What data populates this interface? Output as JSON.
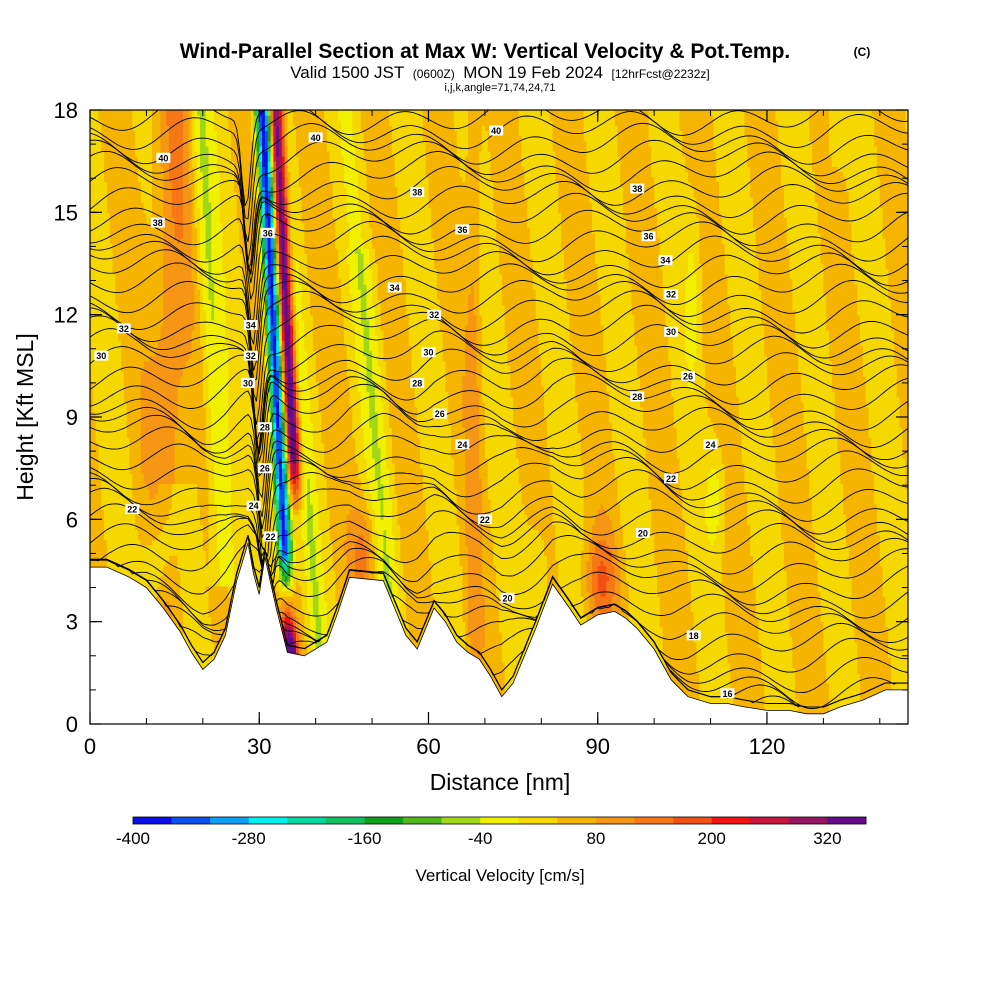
{
  "chart_data": {
    "type": "contour",
    "title": "Wind-Parallel Section at Max W: Vertical Velocity & Pot.Temp.",
    "title_mark": "(C)",
    "subtitle_prefix": "Valid 1500 JST",
    "subtitle_zulu": "(0600Z)",
    "subtitle_main": "MON 19 Feb 2024",
    "subtitle_fcst": "[12hrFcst@2232z]",
    "subtitle2": "i,j,k,angle=71,74,24,71",
    "xlabel": "Distance [nm]",
    "ylabel": "Height [Kft MSL]",
    "xlim": [
      0,
      145
    ],
    "ylim": [
      0,
      18
    ],
    "x_ticks": [
      0,
      30,
      60,
      90,
      120
    ],
    "y_ticks": [
      0,
      3,
      6,
      9,
      12,
      15,
      18
    ],
    "colorbar": {
      "label": "Vertical Velocity [cm/s]",
      "tick_labels": [
        "-400",
        "-280",
        "-160",
        "-40",
        "80",
        "200",
        "320"
      ],
      "min": -400,
      "max": 340,
      "step": 40,
      "colors": [
        "#0a10e6",
        "#0a50f0",
        "#0aa0f5",
        "#00f0f0",
        "#00d8a0",
        "#10c060",
        "#10a020",
        "#50b818",
        "#a0d818",
        "#f0f000",
        "#f5d800",
        "#f5b400",
        "#f59614",
        "#f57814",
        "#f55014",
        "#f01414",
        "#c8143c",
        "#961464",
        "#640a8c"
      ]
    },
    "theta_contour_labels": [
      "16",
      "18",
      "20",
      "22",
      "24",
      "26",
      "28",
      "30",
      "32",
      "34",
      "36",
      "38",
      "40"
    ],
    "terrain_kft": [
      [
        0,
        4.6
      ],
      [
        3,
        4.6
      ],
      [
        7,
        4.3
      ],
      [
        10,
        4.0
      ],
      [
        13,
        3.4
      ],
      [
        16,
        2.7
      ],
      [
        18,
        2.1
      ],
      [
        20,
        1.6
      ],
      [
        22,
        1.9
      ],
      [
        24,
        2.6
      ],
      [
        26,
        4.2
      ],
      [
        28,
        5.3
      ],
      [
        29,
        4.4
      ],
      [
        30,
        3.8
      ],
      [
        31,
        4.9
      ],
      [
        33,
        3.4
      ],
      [
        35,
        2.1
      ],
      [
        38,
        2.0
      ],
      [
        42,
        2.4
      ],
      [
        44,
        3.3
      ],
      [
        46,
        4.3
      ],
      [
        52,
        4.2
      ],
      [
        54,
        3.4
      ],
      [
        56,
        2.6
      ],
      [
        58,
        2.2
      ],
      [
        61,
        3.4
      ],
      [
        63,
        3.0
      ],
      [
        65,
        2.4
      ],
      [
        67,
        2.1
      ],
      [
        69,
        1.9
      ],
      [
        71,
        1.4
      ],
      [
        73,
        0.8
      ],
      [
        75,
        1.2
      ],
      [
        77,
        2.0
      ],
      [
        79,
        2.8
      ],
      [
        82,
        4.1
      ],
      [
        85,
        3.4
      ],
      [
        87,
        2.9
      ],
      [
        90,
        3.2
      ],
      [
        93,
        3.3
      ],
      [
        95,
        3.1
      ],
      [
        97,
        2.8
      ],
      [
        100,
        2.2
      ],
      [
        103,
        1.3
      ],
      [
        106,
        0.8
      ],
      [
        110,
        0.6
      ],
      [
        113,
        0.6
      ],
      [
        116,
        0.5
      ],
      [
        120,
        0.4
      ],
      [
        124,
        0.4
      ],
      [
        127,
        0.3
      ],
      [
        130,
        0.3
      ],
      [
        133,
        0.5
      ],
      [
        137,
        0.7
      ],
      [
        141,
        1.0
      ],
      [
        145,
        1.0
      ]
    ]
  }
}
